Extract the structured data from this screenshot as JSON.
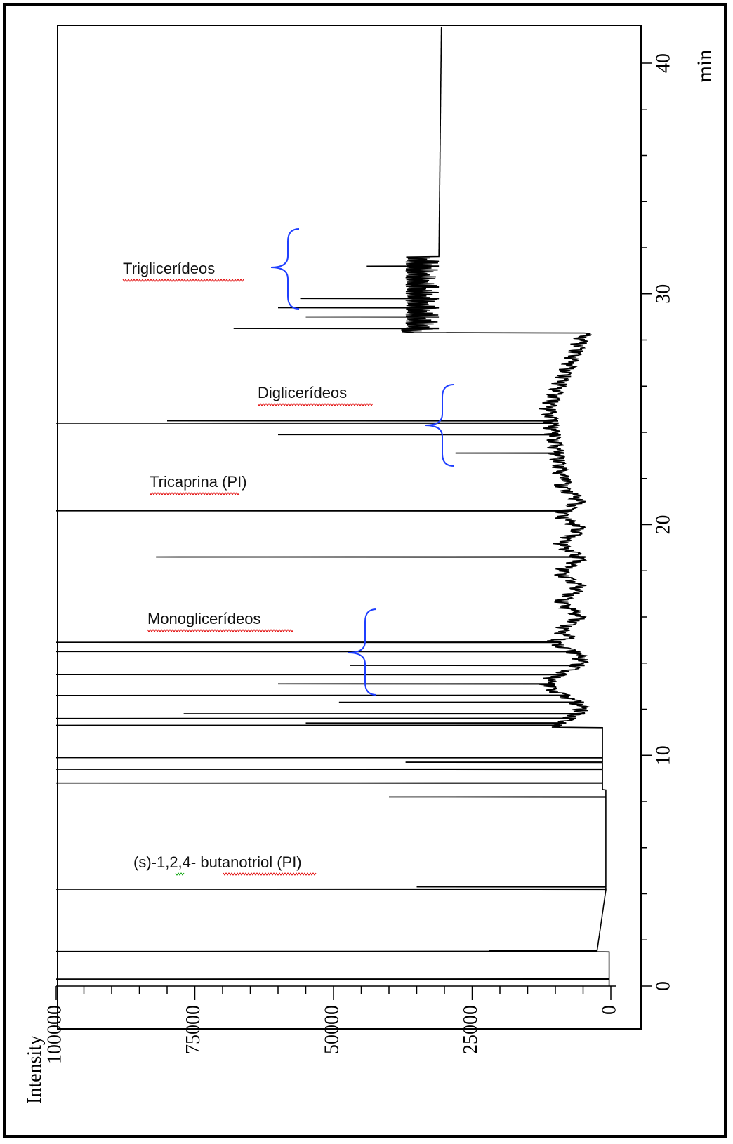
{
  "chart_data": {
    "type": "line",
    "orientation": "rotated-90",
    "title": "",
    "xlabel": "min",
    "ylabel": "Intensity",
    "xlim": [
      0,
      42
    ],
    "ylim": [
      0,
      100000
    ],
    "x_ticks": [
      "0",
      "10",
      "20",
      "30",
      "40"
    ],
    "y_ticks": [
      "0",
      "25000",
      "50000",
      "75000",
      "100000"
    ],
    "grid": false,
    "colors": {
      "trace": "#000000",
      "brace": "#1f3fff",
      "spellcheck_red": "#e00000",
      "spellcheck_green": "#00a000"
    },
    "series": [
      {
        "peaks": [
          {
            "x": 0.3,
            "y": 100000
          },
          {
            "x": 1.5,
            "y": 100000
          },
          {
            "x": 1.55,
            "y": 22000
          },
          {
            "x": 4.2,
            "y": 100000
          },
          {
            "x": 4.3,
            "y": 35000
          },
          {
            "x": 8.2,
            "y": 40000
          },
          {
            "x": 8.8,
            "y": 100000
          },
          {
            "x": 9.4,
            "y": 100000
          },
          {
            "x": 9.9,
            "y": 100000
          },
          {
            "x": 9.7,
            "y": 37000
          },
          {
            "x": 11.3,
            "y": 100000
          },
          {
            "x": 11.4,
            "y": 55000
          },
          {
            "x": 11.6,
            "y": 100000
          },
          {
            "x": 11.8,
            "y": 77000
          },
          {
            "x": 12.3,
            "y": 49000
          },
          {
            "x": 12.6,
            "y": 100000
          },
          {
            "x": 13.1,
            "y": 60000
          },
          {
            "x": 13.5,
            "y": 100000
          },
          {
            "x": 13.9,
            "y": 47000
          },
          {
            "x": 14.5,
            "y": 100000
          },
          {
            "x": 14.9,
            "y": 100000
          },
          {
            "x": 18.6,
            "y": 82000
          },
          {
            "x": 20.6,
            "y": 100000
          },
          {
            "x": 23.1,
            "y": 28000
          },
          {
            "x": 23.9,
            "y": 60000
          },
          {
            "x": 24.4,
            "y": 100000
          },
          {
            "x": 24.5,
            "y": 80000
          },
          {
            "x": 28.5,
            "y": 68000
          },
          {
            "x": 29.0,
            "y": 55000
          },
          {
            "x": 29.4,
            "y": 60000
          },
          {
            "x": 29.8,
            "y": 56000
          },
          {
            "x": 30.3,
            "y": 34000
          },
          {
            "x": 31.2,
            "y": 44000
          },
          {
            "x": 31.4,
            "y": 33000
          }
        ]
      }
    ],
    "annotations": [
      {
        "text": "Triglicerídeos",
        "x": 31.3,
        "y": 88000
      },
      {
        "text": "Diglicerídeos",
        "x": 26.4,
        "y": 68000
      },
      {
        "text": "Tricaprina (PI)",
        "x": 22.0,
        "y": 84000
      },
      {
        "text": "Monoglicerídeos",
        "x": 17.1,
        "y": 84000
      },
      {
        "text": "(s)-1,2,4- butanotriol (PI)",
        "x": 5.1,
        "y": 86000
      }
    ]
  }
}
